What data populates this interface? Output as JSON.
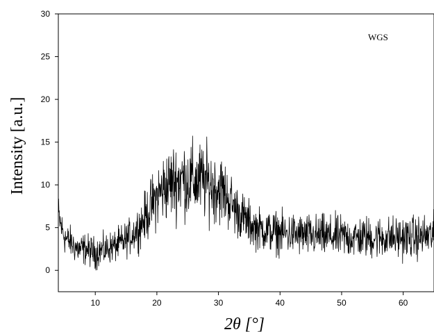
{
  "chart_data": {
    "type": "line",
    "title": "",
    "xlabel": "2θ [°]",
    "ylabel": "Intensity [a.u.]",
    "xlim": [
      4,
      65
    ],
    "ylim": [
      -2.5,
      30
    ],
    "xticks": [
      10,
      20,
      30,
      40,
      50,
      60
    ],
    "yticks": [
      0,
      5,
      10,
      15,
      20,
      25,
      30
    ],
    "grid": false,
    "legend_position": "top-right",
    "series": [
      {
        "name": "WGS",
        "color": "#000000",
        "x": [
          4,
          4.5,
          5,
          5.5,
          6,
          6.5,
          7,
          7.5,
          8,
          8.5,
          9,
          9.5,
          10,
          10.5,
          11,
          11.5,
          12,
          12.5,
          13,
          13.5,
          14,
          14.5,
          15,
          15.5,
          16,
          16.5,
          17,
          17.5,
          18,
          18.5,
          19,
          19.5,
          20,
          20.5,
          21,
          21.5,
          22,
          22.5,
          23,
          23.5,
          24,
          24.5,
          25,
          25.5,
          26,
          26.5,
          27,
          27.5,
          28,
          28.5,
          29,
          29.5,
          30,
          30.5,
          31,
          31.5,
          32,
          32.5,
          33,
          33.5,
          34,
          34.5,
          35,
          35.5,
          36,
          36.5,
          37,
          37.5,
          38,
          38.5,
          39,
          39.5,
          40,
          40.5,
          41,
          41.5,
          42,
          42.5,
          43,
          43.5,
          44,
          44.5,
          45,
          45.5,
          46,
          46.5,
          47,
          47.5,
          48,
          48.5,
          49,
          49.5,
          50,
          50.5,
          51,
          51.5,
          52,
          52.5,
          53,
          53.5,
          54,
          54.5,
          55,
          55.5,
          56,
          56.5,
          57,
          57.5,
          58,
          58.5,
          59,
          59.5,
          60,
          60.5,
          61,
          61.5,
          62,
          62.5,
          63,
          63.5,
          64,
          64.5,
          65
        ],
        "y": [
          6.5,
          5.0,
          4.0,
          3.5,
          3.3,
          2.9,
          2.6,
          2.4,
          2.5,
          2.5,
          2.3,
          2.2,
          2.0,
          2.2,
          2.4,
          2.3,
          2.6,
          2.7,
          2.8,
          2.9,
          3.1,
          3.3,
          3.6,
          3.9,
          4.2,
          4.6,
          5.0,
          5.5,
          6.1,
          6.7,
          7.4,
          8.0,
          8.6,
          9.1,
          9.5,
          9.8,
          10.1,
          10.3,
          10.5,
          10.6,
          10.8,
          10.7,
          10.4,
          10.6,
          10.5,
          10.3,
          10.6,
          10.4,
          10.3,
          10.1,
          9.9,
          9.7,
          9.6,
          9.4,
          8.9,
          8.5,
          8.0,
          7.4,
          7.0,
          6.6,
          6.2,
          5.8,
          5.5,
          5.2,
          5.0,
          4.9,
          4.8,
          4.7,
          4.6,
          4.5,
          4.5,
          4.4,
          4.4,
          4.3,
          4.3,
          4.2,
          4.3,
          4.2,
          4.1,
          4.2,
          4.1,
          4.0,
          4.1,
          4.0,
          4.0,
          4.1,
          4.0,
          3.9,
          4.0,
          3.9,
          4.0,
          3.9,
          3.9,
          4.0,
          3.8,
          3.9,
          3.9,
          3.8,
          3.9,
          3.8,
          3.9,
          3.8,
          3.8,
          3.9,
          3.8,
          3.8,
          3.9,
          3.8,
          3.9,
          3.8,
          3.8,
          3.9,
          3.8,
          3.9,
          3.8,
          3.9,
          3.8,
          3.9,
          3.9,
          4.0,
          4.0,
          4.0,
          4.1
        ],
        "noise_amplitude": [
          1.2,
          1.0,
          1.0,
          0.9,
          0.9,
          0.9,
          0.9,
          0.9,
          0.9,
          0.9,
          0.9,
          0.9,
          0.9,
          0.9,
          0.9,
          0.9,
          0.9,
          0.9,
          0.9,
          0.9,
          1.0,
          1.0,
          1.0,
          1.0,
          1.1,
          1.1,
          1.2,
          1.3,
          1.4,
          1.5,
          1.6,
          1.7,
          1.8,
          1.9,
          2.0,
          2.0,
          2.1,
          2.1,
          2.2,
          2.2,
          2.2,
          2.2,
          2.2,
          2.2,
          2.2,
          2.2,
          2.2,
          2.2,
          2.2,
          2.1,
          2.1,
          2.0,
          2.0,
          2.0,
          1.9,
          1.8,
          1.7,
          1.6,
          1.5,
          1.4,
          1.4,
          1.3,
          1.3,
          1.2,
          1.2,
          1.2,
          1.2,
          1.2,
          1.2,
          1.2,
          1.2,
          1.2,
          1.2,
          1.2,
          1.2,
          1.2,
          1.2,
          1.2,
          1.2,
          1.2,
          1.2,
          1.2,
          1.2,
          1.2,
          1.2,
          1.2,
          1.2,
          1.2,
          1.2,
          1.2,
          1.2,
          1.2,
          1.2,
          1.2,
          1.2,
          1.2,
          1.2,
          1.2,
          1.2,
          1.2,
          1.2,
          1.2,
          1.2,
          1.2,
          1.2,
          1.2,
          1.2,
          1.2,
          1.2,
          1.2,
          1.2,
          1.2,
          1.2,
          1.2,
          1.2,
          1.2,
          1.2,
          1.2,
          1.2,
          1.2,
          1.2,
          1.2,
          1.2
        ]
      }
    ]
  }
}
